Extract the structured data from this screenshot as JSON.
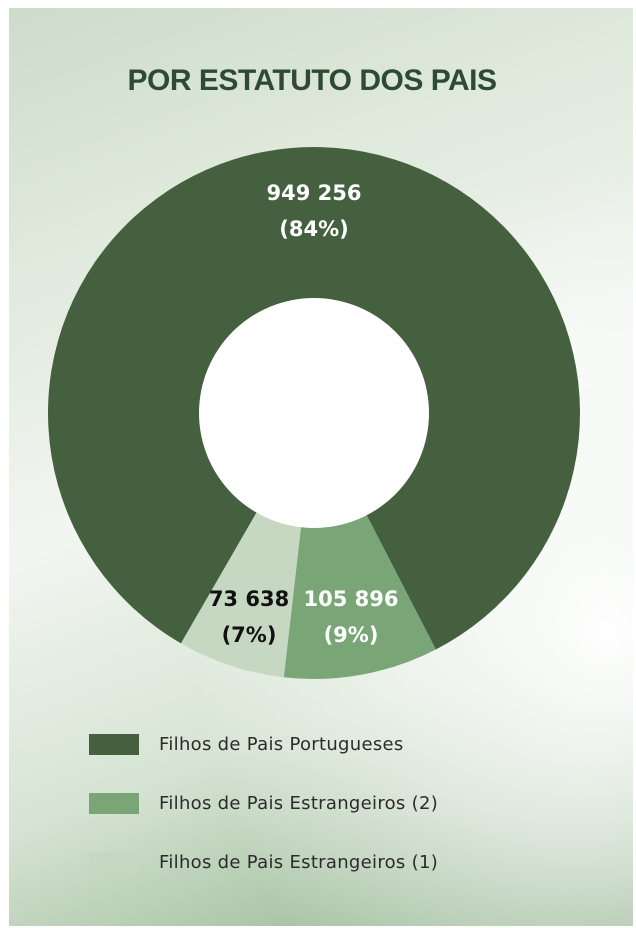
{
  "chart_data": {
    "type": "donut",
    "title": "POR ESTATUTO DOS PAIS",
    "series": [
      {
        "name": "Filhos de Pais Portugueses",
        "value": 949256,
        "value_label": "949 256",
        "percent_label": "(84%)",
        "color": "#44603f",
        "label_color": "#ffffff"
      },
      {
        "name": "Filhos de Pais Estrangeiros (2)",
        "value": 105896,
        "value_label": "105 896",
        "percent_label": "(9%)",
        "color": "#7aa577",
        "label_color": "#ffffff"
      },
      {
        "name": "Filhos de Pais Estrangeiros (1)",
        "value": 73638,
        "value_label": "73 638",
        "percent_label": "(7%)",
        "color": "#c6d7c2",
        "label_color": "#111111"
      }
    ],
    "center_color": "#ffffff",
    "legend_position": "bottom-left"
  }
}
